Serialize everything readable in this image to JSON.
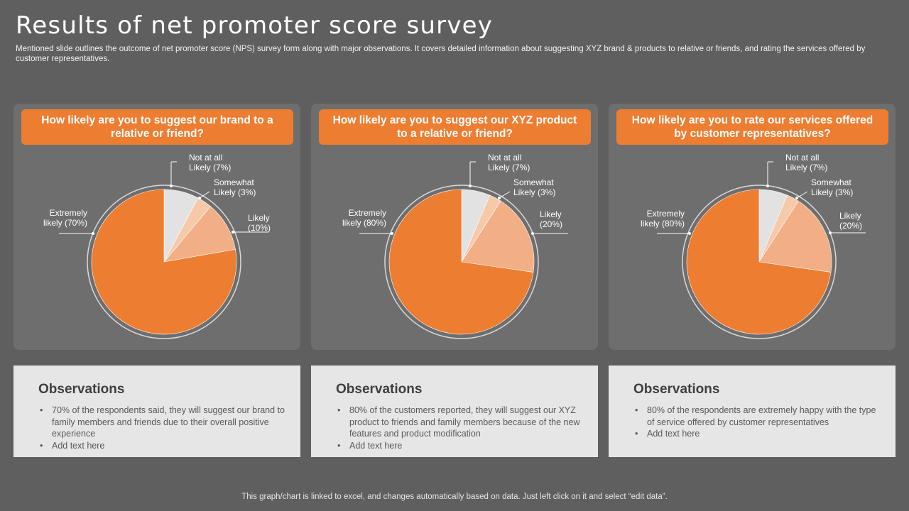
{
  "header": {
    "title": "Results of net promoter score survey",
    "subtitle": "Mentioned slide outlines the outcome of net promoter score (NPS) survey form along with major observations. It covers detailed information about suggesting XYZ brand & products to relative or friends, and rating the services offered by customer representatives."
  },
  "colors": {
    "background": "#5f5f5f",
    "panel": "#6e6e6e",
    "accent": "#ed7d31",
    "observation_bg": "#e7e6e6"
  },
  "panels": [
    {
      "question": "How likely are you to suggest our brand to a relative or friend?",
      "labels": {
        "not_at_all_1": "Not at all",
        "not_at_all_2": "Likely (7%)",
        "somewhat_1": "Somewhat",
        "somewhat_2": "Likely (3%)",
        "likely_1": "Likely",
        "likely_2": "(10%)",
        "extremely_1": "Extremely",
        "extremely_2": "likely (70%)"
      },
      "observations": {
        "title": "Observations",
        "items": [
          "70% of the respondents said, they will suggest our brand to family members and friends due to their overall positive experience",
          "Add text here"
        ]
      }
    },
    {
      "question": "How likely are you to suggest our XYZ product to a relative or friend?",
      "labels": {
        "not_at_all_1": "Not at all",
        "not_at_all_2": "Likely (7%)",
        "somewhat_1": "Somewhat",
        "somewhat_2": "Likely (3%)",
        "likely_1": "Likely",
        "likely_2": "(20%)",
        "extremely_1": "Extremely",
        "extremely_2": "likely (80%)"
      },
      "observations": {
        "title": "Observations",
        "items": [
          "80% of the customers reported, they will suggest our XYZ product to friends and family members because of the new features and product modification",
          "Add text here"
        ]
      }
    },
    {
      "question": "How likely are you to rate our services offered by customer representatives?",
      "labels": {
        "not_at_all_1": "Not at all",
        "not_at_all_2": "Likely (7%)",
        "somewhat_1": "Somewhat",
        "somewhat_2": "Likely (3%)",
        "likely_1": "Likely",
        "likely_2": "(20%)",
        "extremely_1": "Extremely",
        "extremely_2": "likely (80%)"
      },
      "observations": {
        "title": "Observations",
        "items": [
          "80% of the respondents are extremely happy with the type of service offered by customer representatives",
          "Add text here"
        ]
      }
    }
  ],
  "chart_data": [
    {
      "type": "pie",
      "categories": [
        "Not at all Likely",
        "Somewhat Likely",
        "Likely",
        "Extremely likely"
      ],
      "values": [
        7,
        3,
        10,
        70
      ],
      "colors": [
        "#e2e2e2",
        "#f6c9a9",
        "#f2ae84",
        "#ed7d31"
      ]
    },
    {
      "type": "pie",
      "categories": [
        "Not at all Likely",
        "Somewhat Likely",
        "Likely",
        "Extremely likely"
      ],
      "values": [
        7,
        3,
        20,
        80
      ],
      "colors": [
        "#e2e2e2",
        "#f6c9a9",
        "#f2ae84",
        "#ed7d31"
      ]
    },
    {
      "type": "pie",
      "categories": [
        "Not at all Likely",
        "Somewhat Likely",
        "Likely",
        "Extremely likely"
      ],
      "values": [
        7,
        3,
        20,
        80
      ],
      "colors": [
        "#e2e2e2",
        "#f6c9a9",
        "#f2ae84",
        "#ed7d31"
      ]
    }
  ],
  "footer": {
    "note": "This graph/chart is linked to excel,  and changes automatically based on data. Just left click on it and select “edit data”."
  }
}
